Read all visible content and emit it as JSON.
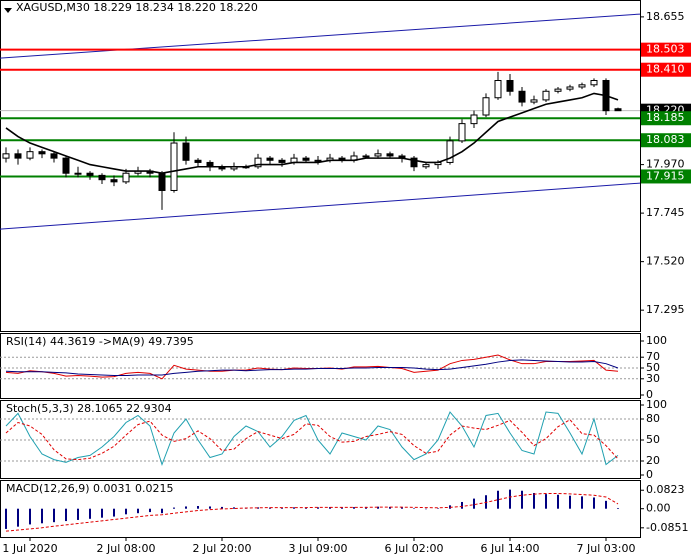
{
  "chart_data": [
    {
      "type": "candlestick",
      "title": "XAGUSD,M30  18.229 18.234 18.220 18.220",
      "categories": [
        null,
        null,
        "1 Jul 2020",
        null,
        null,
        null,
        null,
        null,
        null,
        null,
        "2 Jul 08:00",
        null,
        null,
        null,
        null,
        null,
        null,
        null,
        "2 Jul 20:00",
        null,
        null,
        null,
        null,
        null,
        null,
        null,
        "3 Jul 09:00",
        null,
        null,
        null,
        null,
        null,
        null,
        null,
        "6 Jul 02:00",
        null,
        null,
        null,
        null,
        null,
        null,
        null,
        "6 Jul 14:00",
        null,
        null,
        null,
        null,
        null,
        null,
        null,
        "7 Jul 03:00",
        null
      ],
      "ohlc": [
        [
          18.0,
          18.05,
          17.98,
          18.02
        ],
        [
          18.02,
          18.04,
          17.97,
          18.0
        ],
        [
          18.0,
          18.05,
          17.99,
          18.03
        ],
        [
          18.03,
          18.04,
          18.0,
          18.02
        ],
        [
          18.02,
          18.03,
          17.98,
          18.0
        ],
        [
          18.0,
          18.01,
          17.91,
          17.93
        ],
        [
          17.93,
          17.96,
          17.91,
          17.93
        ],
        [
          17.93,
          17.94,
          17.9,
          17.92
        ],
        [
          17.92,
          17.93,
          17.88,
          17.9
        ],
        [
          17.9,
          17.92,
          17.87,
          17.89
        ],
        [
          17.89,
          17.95,
          17.88,
          17.93
        ],
        [
          17.93,
          17.96,
          17.92,
          17.94
        ],
        [
          17.94,
          17.95,
          17.91,
          17.93
        ],
        [
          17.93,
          17.94,
          17.76,
          17.85
        ],
        [
          17.85,
          18.12,
          17.84,
          18.07
        ],
        [
          18.07,
          18.1,
          17.97,
          17.99
        ],
        [
          17.99,
          18.0,
          17.96,
          17.98
        ],
        [
          17.98,
          17.99,
          17.94,
          17.96
        ],
        [
          17.96,
          17.97,
          17.94,
          17.95
        ],
        [
          17.95,
          17.98,
          17.94,
          17.96
        ],
        [
          17.96,
          17.97,
          17.95,
          17.96
        ],
        [
          17.96,
          18.02,
          17.95,
          18.0
        ],
        [
          18.0,
          18.01,
          17.97,
          17.99
        ],
        [
          17.99,
          18.0,
          17.96,
          17.98
        ],
        [
          17.98,
          18.02,
          17.97,
          18.0
        ],
        [
          18.0,
          18.01,
          17.98,
          17.99
        ],
        [
          17.99,
          18.01,
          17.97,
          17.99
        ],
        [
          17.99,
          18.02,
          17.98,
          18.0
        ],
        [
          18.0,
          18.01,
          17.98,
          17.99
        ],
        [
          17.99,
          18.03,
          17.98,
          18.01
        ],
        [
          18.01,
          18.02,
          18.0,
          18.01
        ],
        [
          18.01,
          18.04,
          18.0,
          18.02
        ],
        [
          18.02,
          18.03,
          18.0,
          18.01
        ],
        [
          18.01,
          18.02,
          17.98,
          18.0
        ],
        [
          18.0,
          18.01,
          17.94,
          17.96
        ],
        [
          17.96,
          17.98,
          17.95,
          17.97
        ],
        [
          17.97,
          17.99,
          17.95,
          17.98
        ],
        [
          17.98,
          18.1,
          17.97,
          18.08
        ],
        [
          18.08,
          18.18,
          18.07,
          18.16
        ],
        [
          18.16,
          18.22,
          18.14,
          18.2
        ],
        [
          18.2,
          18.3,
          18.19,
          18.28
        ],
        [
          18.28,
          18.4,
          18.27,
          18.36
        ],
        [
          18.36,
          18.39,
          18.29,
          18.31
        ],
        [
          18.31,
          18.33,
          18.24,
          18.26
        ],
        [
          18.26,
          18.29,
          18.25,
          18.27
        ],
        [
          18.27,
          18.32,
          18.26,
          18.31
        ],
        [
          18.31,
          18.33,
          18.3,
          18.32
        ],
        [
          18.32,
          18.34,
          18.31,
          18.33
        ],
        [
          18.33,
          18.35,
          18.32,
          18.34
        ],
        [
          18.34,
          18.37,
          18.33,
          18.36
        ],
        [
          18.36,
          18.37,
          18.2,
          18.22
        ],
        [
          18.229,
          18.234,
          18.22,
          18.22
        ]
      ],
      "series": [
        {
          "color": "#000000",
          "values": [
            18.14,
            18.1,
            18.07,
            18.05,
            18.03,
            18.01,
            17.99,
            17.97,
            17.96,
            17.95,
            17.94,
            17.94,
            17.94,
            17.93,
            17.94,
            17.95,
            17.96,
            17.96,
            17.96,
            17.96,
            17.96,
            17.97,
            17.97,
            17.97,
            17.98,
            17.98,
            17.98,
            17.99,
            17.99,
            17.99,
            18.0,
            18.0,
            18.0,
            18.0,
            17.99,
            17.98,
            17.98,
            18.0,
            18.03,
            18.07,
            18.12,
            18.17,
            18.19,
            18.21,
            18.23,
            18.25,
            18.26,
            18.27,
            18.28,
            18.3,
            18.29,
            18.27
          ]
        }
      ],
      "channels": [
        {
          "color": "#1a1aa8",
          "values": [
            18.464,
            18.668
          ]
        },
        {
          "color": "#1a1aa8",
          "values": [
            17.671,
            17.884
          ]
        }
      ],
      "levels": [
        {
          "color": "#ff0000",
          "values": [
            18.503,
            {
              "value": 18.41,
              "label": "18.410"
            }
          ]
        },
        {
          "color": "#008000",
          "values": [
            18.185,
            18.083,
            17.915
          ]
        }
      ],
      "last": {
        "value": 18.22,
        "label": "18.220"
      },
      "ylim": [
        17.203,
        18.724
      ],
      "yticks": [
        18.655,
        {
          "value": 17.97,
          "label": "17.970"
        },
        17.745,
        {
          "value": 17.52,
          "label": "17.520"
        },
        17.295
      ]
    },
    {
      "type": "line",
      "title": "RSI(14) 44.3619  ->MA(9) 49.7395",
      "ylim": [
        0,
        100
      ],
      "yticks": [
        100,
        70,
        50,
        30,
        0
      ],
      "grid": true,
      "series": [
        {
          "color": "#e00000",
          "values": [
            42,
            40,
            45,
            43,
            40,
            35,
            36,
            35,
            33,
            34,
            40,
            42,
            40,
            30,
            55,
            48,
            46,
            44,
            44,
            46,
            46,
            50,
            48,
            47,
            50,
            49,
            49,
            50,
            48,
            52,
            52,
            53,
            51,
            49,
            42,
            44,
            46,
            58,
            64,
            66,
            70,
            74,
            65,
            58,
            58,
            62,
            62,
            62,
            63,
            64,
            46,
            44
          ]
        },
        {
          "color": "#000080",
          "values": [
            44,
            43,
            43,
            43,
            42,
            41,
            39,
            38,
            37,
            36,
            36,
            37,
            37,
            37,
            40,
            42,
            44,
            45,
            46,
            46,
            45,
            46,
            47,
            47,
            48,
            48,
            49,
            49,
            49,
            50,
            50,
            51,
            51,
            51,
            50,
            48,
            47,
            48,
            51,
            54,
            57,
            61,
            64,
            65,
            64,
            63,
            62,
            61,
            61,
            62,
            58,
            50
          ]
        }
      ]
    },
    {
      "type": "line",
      "title": "Stoch(5,3,3) 28.1065 22.9304",
      "ylim": [
        0,
        100
      ],
      "yticks": [
        100,
        80,
        50,
        20,
        0
      ],
      "grid": true,
      "series": [
        {
          "color": "#20a0b0",
          "values": [
            70,
            88,
            55,
            30,
            22,
            18,
            25,
            28,
            40,
            55,
            75,
            85,
            70,
            15,
            60,
            80,
            50,
            25,
            30,
            55,
            70,
            62,
            40,
            55,
            78,
            85,
            50,
            30,
            60,
            55,
            50,
            70,
            65,
            40,
            22,
            30,
            50,
            90,
            70,
            40,
            85,
            88,
            60,
            35,
            30,
            90,
            88,
            60,
            30,
            80,
            15,
            28
          ]
        },
        {
          "color": "#e00000",
          "dashed": true,
          "values": [
            60,
            75,
            70,
            58,
            36,
            23,
            22,
            24,
            31,
            41,
            57,
            72,
            77,
            57,
            48,
            52,
            63,
            52,
            35,
            37,
            52,
            62,
            57,
            52,
            58,
            73,
            71,
            55,
            47,
            48,
            55,
            58,
            62,
            58,
            42,
            31,
            34,
            57,
            70,
            67,
            65,
            71,
            78,
            61,
            42,
            52,
            69,
            79,
            59,
            57,
            42,
            23
          ]
        }
      ]
    },
    {
      "type": "macd",
      "title": "MACD(12,26,9) 0.0031 0.0215",
      "ylim": [
        -0.126,
        0.1234
      ],
      "yticks": [
        0.0823,
        {
          "value": 0,
          "label": "0.00"
        },
        -0.0851
      ],
      "histogram": {
        "color": "#000080",
        "values": [
          -0.09,
          -0.08,
          -0.07,
          -0.065,
          -0.06,
          -0.055,
          -0.05,
          -0.045,
          -0.04,
          -0.035,
          -0.025,
          -0.02,
          -0.015,
          -0.02,
          0.005,
          0.01,
          0.012,
          0.01,
          0.008,
          0.006,
          0.005,
          0.006,
          0.005,
          0.005,
          0.006,
          0.006,
          0.006,
          0.007,
          0.006,
          0.007,
          0.008,
          0.009,
          0.008,
          0.006,
          0.001,
          0.0,
          0.002,
          0.015,
          0.03,
          0.045,
          0.06,
          0.08,
          0.085,
          0.08,
          0.07,
          0.065,
          0.062,
          0.058,
          0.055,
          0.05,
          0.035,
          0.0031
        ]
      },
      "series": [
        {
          "color": "#e00000",
          "dashed": true,
          "values": [
            -0.1,
            -0.095,
            -0.09,
            -0.085,
            -0.078,
            -0.072,
            -0.066,
            -0.06,
            -0.054,
            -0.048,
            -0.042,
            -0.036,
            -0.03,
            -0.027,
            -0.02,
            -0.014,
            -0.008,
            -0.004,
            -0.001,
            0.001,
            0.003,
            0.004,
            0.005,
            0.005,
            0.005,
            0.005,
            0.006,
            0.006,
            0.006,
            0.006,
            0.006,
            0.007,
            0.007,
            0.007,
            0.006,
            0.005,
            0.004,
            0.006,
            0.01,
            0.018,
            0.028,
            0.04,
            0.052,
            0.06,
            0.065,
            0.068,
            0.068,
            0.066,
            0.063,
            0.06,
            0.052,
            0.0215
          ]
        }
      ]
    }
  ]
}
